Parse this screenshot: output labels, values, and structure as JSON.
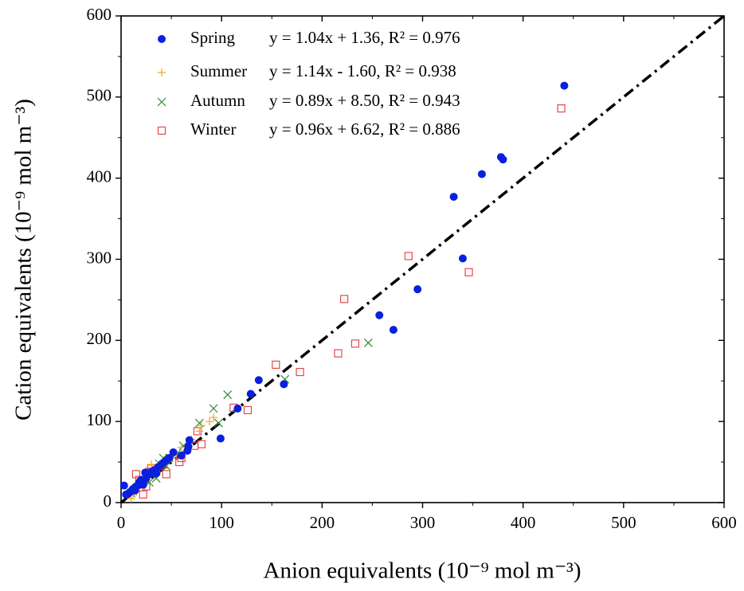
{
  "chart_data": {
    "type": "scatter",
    "x_label": "Anion equivalents (10⁻⁹ mol m⁻³)",
    "y_label": "Cation equivalents (10⁻⁹ mol m⁻³)",
    "xlim": [
      0,
      600
    ],
    "ylim": [
      0,
      600
    ],
    "xticks": [
      0,
      100,
      200,
      300,
      400,
      500,
      600
    ],
    "yticks": [
      0,
      100,
      200,
      300,
      400,
      500,
      600
    ],
    "xminorticks": [
      50,
      150,
      250,
      350,
      450,
      550
    ],
    "yminorticks": [
      50,
      150,
      250,
      350,
      450,
      550
    ],
    "reference_line": {
      "x": [
        0,
        600
      ],
      "y": [
        0,
        600
      ],
      "color": "#000000"
    },
    "legend_position": "upper left",
    "series": [
      {
        "name": "Spring",
        "equation": "y = 1.04x + 1.36, R² = 0.976",
        "marker": "circle",
        "color": "#0a1fe0",
        "x": [
          441,
          378,
          380,
          359,
          331,
          340,
          295,
          257,
          271,
          162,
          137,
          129,
          116,
          99,
          68,
          67,
          66,
          60,
          52,
          48,
          45,
          42,
          40,
          37,
          33,
          30,
          28,
          24,
          25,
          20,
          18,
          15,
          12,
          10,
          8,
          5,
          3,
          14,
          22,
          35
        ],
        "y": [
          514,
          426,
          423,
          405,
          377,
          301,
          263,
          231,
          213,
          146,
          151,
          134,
          116,
          79,
          77,
          69,
          64,
          58,
          62,
          55,
          52,
          49,
          47,
          44,
          40,
          38,
          35,
          37,
          30,
          28,
          25,
          20,
          17,
          14,
          12,
          10,
          21,
          15,
          22,
          36
        ]
      },
      {
        "name": "Summer",
        "equation": "y = 1.14x  - 1.60, R² = 0.938",
        "marker": "plus",
        "color": "#f5a623",
        "x": [
          92,
          88,
          80,
          78,
          70,
          60,
          55,
          50,
          45,
          40,
          30,
          28,
          25,
          20,
          18,
          15,
          12,
          10,
          22,
          35
        ],
        "y": [
          105,
          100,
          95,
          88,
          78,
          68,
          60,
          55,
          50,
          45,
          47,
          38,
          30,
          25,
          20,
          15,
          10,
          5,
          28,
          38
        ]
      },
      {
        "name": "Autumn",
        "equation": "y = 0.89x + 8.50, R² = 0.943",
        "marker": "cross",
        "color": "#2e8b2e",
        "x": [
          246,
          163,
          106,
          92,
          97,
          78,
          62,
          55,
          48,
          42,
          38,
          35,
          30,
          25,
          20,
          15,
          12,
          10,
          28,
          45
        ],
        "y": [
          197,
          152,
          133,
          116,
          98,
          98,
          70,
          60,
          55,
          55,
          48,
          30,
          35,
          28,
          22,
          18,
          14,
          12,
          25,
          45
        ]
      },
      {
        "name": "Winter",
        "equation": "y = 0.96x + 6.62, R² = 0.886",
        "marker": "square",
        "color": "#e8474b",
        "x": [
          438,
          286,
          346,
          222,
          233,
          216,
          154,
          178,
          126,
          112,
          80,
          76,
          73,
          60,
          58,
          45,
          42,
          35,
          30,
          28,
          22,
          20,
          15,
          18,
          25
        ],
        "y": [
          486,
          304,
          284,
          251,
          196,
          184,
          170,
          161,
          114,
          117,
          72,
          88,
          70,
          55,
          50,
          35,
          47,
          40,
          42,
          38,
          10,
          25,
          35,
          28,
          20
        ]
      }
    ]
  }
}
